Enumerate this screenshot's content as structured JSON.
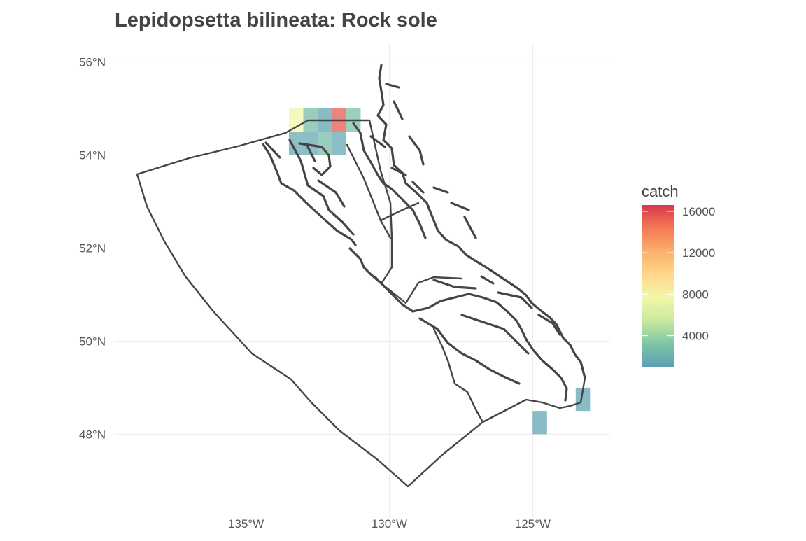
{
  "chart_data": {
    "type": "heatmap",
    "title": "Lepidopsetta bilineata: Rock sole",
    "xlabel": "",
    "ylabel": "",
    "x_ticks": [
      {
        "value": -135,
        "label": "135°W"
      },
      {
        "value": -130,
        "label": "130°W"
      },
      {
        "value": -125,
        "label": "125°W"
      }
    ],
    "y_ticks": [
      {
        "value": 56,
        "label": "56°N"
      },
      {
        "value": 54,
        "label": "54°N"
      },
      {
        "value": 52,
        "label": "52°N"
      },
      {
        "value": 50,
        "label": "50°N"
      },
      {
        "value": 48,
        "label": "48°N"
      }
    ],
    "xlim": [
      -139.6,
      -122.3
    ],
    "ylim": [
      46.2,
      56.4
    ],
    "grid": true,
    "legend": {
      "title": "catch",
      "placement": "right",
      "min": 1000,
      "max": 16600,
      "ticks": [
        {
          "value": 16000,
          "label": "16000"
        },
        {
          "value": 12000,
          "label": "12000"
        },
        {
          "value": 8000,
          "label": "8000"
        },
        {
          "value": 4000,
          "label": "4000"
        }
      ],
      "colors": [
        "#5e9fb5",
        "#7fc6a4",
        "#c9e99d",
        "#f3f7aa",
        "#fed78a",
        "#fcaf6a",
        "#f47a55",
        "#d6384b"
      ]
    },
    "cells": [
      {
        "lon": -133.5,
        "lat": 54.5,
        "catch": 7700
      },
      {
        "lon": -133.0,
        "lat": 54.5,
        "catch": 2700
      },
      {
        "lon": -132.5,
        "lat": 54.5,
        "catch": 1300
      },
      {
        "lon": -132.0,
        "lat": 54.5,
        "catch": 15500
      },
      {
        "lon": -131.5,
        "lat": 54.5,
        "catch": 2900
      },
      {
        "lon": -133.5,
        "lat": 54.0,
        "catch": 1600
      },
      {
        "lon": -133.0,
        "lat": 54.0,
        "catch": 1500
      },
      {
        "lon": -132.5,
        "lat": 54.0,
        "catch": 2700
      },
      {
        "lon": -132.0,
        "lat": 54.0,
        "catch": 1500
      },
      {
        "lon": -125.0,
        "lat": 48.0,
        "catch": 1300
      },
      {
        "lon": -123.5,
        "lat": 48.5,
        "catch": 1300
      }
    ]
  }
}
